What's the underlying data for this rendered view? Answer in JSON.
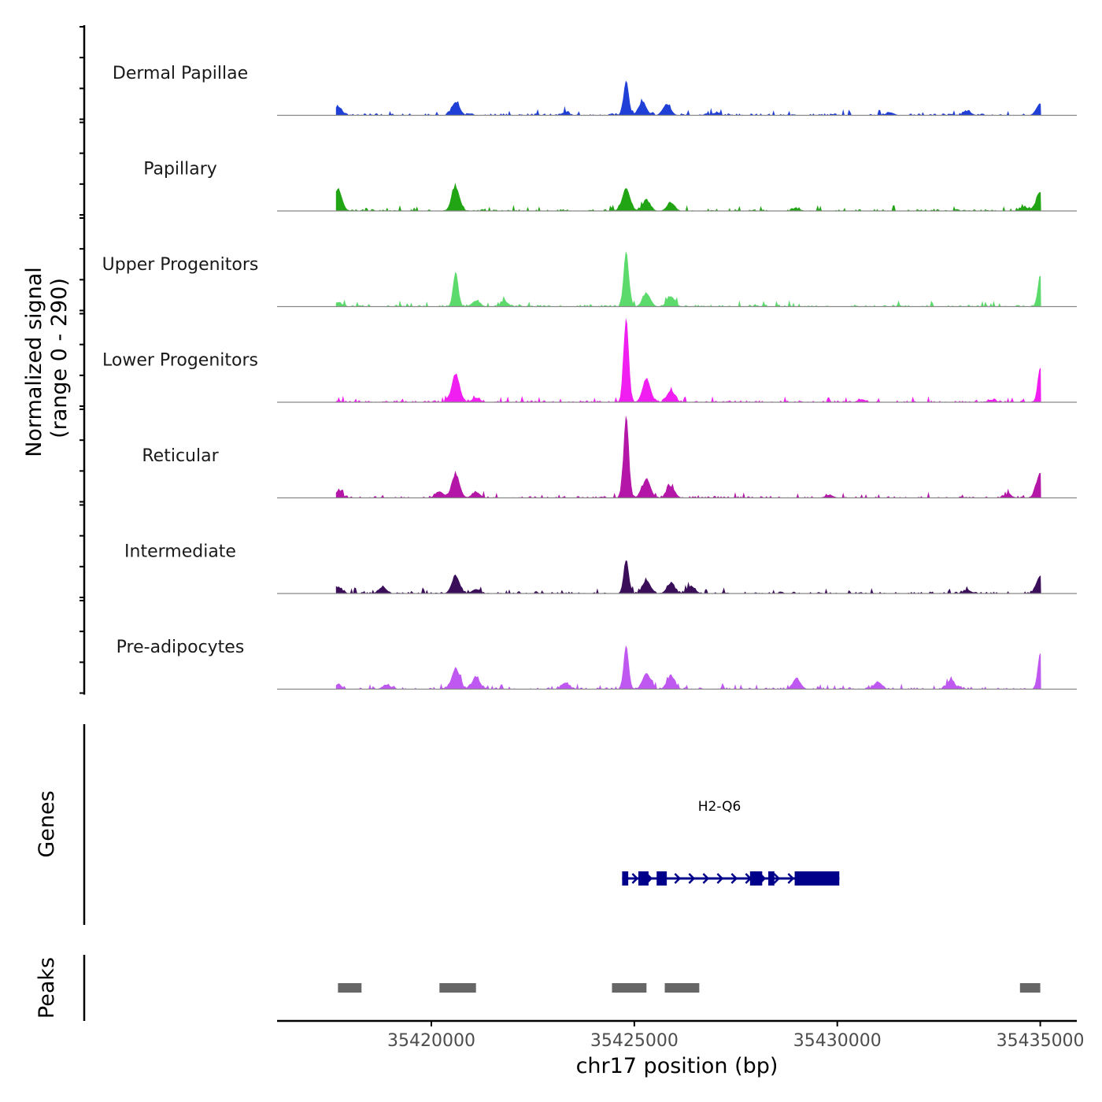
{
  "chart_data": {
    "type": "area",
    "title": "",
    "signal_axis_label_line1": "Normalized signal",
    "signal_axis_label_line2": "(range 0 - 290)",
    "y_range": [
      0,
      290
    ],
    "xlabel": "chr17 position (bp)",
    "x_range": [
      35416200,
      35435900
    ],
    "x_ticks": [
      35420000,
      35425000,
      35430000,
      35435000
    ],
    "x_tick_labels": [
      "35420000",
      "35425000",
      "35430000",
      "35435000"
    ],
    "tracks": [
      {
        "name": "Dermal Papillae",
        "color": "#1f3fd6",
        "peaks": [
          [
            35417700,
            30
          ],
          [
            35420600,
            45
          ],
          [
            35423300,
            10
          ],
          [
            35424800,
            120
          ],
          [
            35425200,
            45
          ],
          [
            35425800,
            38
          ],
          [
            35427000,
            8
          ],
          [
            35431300,
            10
          ],
          [
            35433200,
            14
          ],
          [
            35435000,
            40
          ]
        ]
      },
      {
        "name": "Papillary",
        "color": "#22a514",
        "peaks": [
          [
            35417700,
            75
          ],
          [
            35420600,
            80
          ],
          [
            35424800,
            75
          ],
          [
            35425300,
            35
          ],
          [
            35425900,
            28
          ],
          [
            35429000,
            8
          ],
          [
            35434600,
            14
          ],
          [
            35435000,
            65
          ]
        ]
      },
      {
        "name": "Upper Progenitors",
        "color": "#5cdb6c",
        "peaks": [
          [
            35417700,
            15
          ],
          [
            35420600,
            120
          ],
          [
            35421100,
            20
          ],
          [
            35421800,
            18
          ],
          [
            35424800,
            190
          ],
          [
            35425300,
            45
          ],
          [
            35425900,
            35
          ],
          [
            35435000,
            105
          ]
        ]
      },
      {
        "name": "Lower Progenitors",
        "color": "#f01ef0",
        "peaks": [
          [
            35417700,
            5
          ],
          [
            35420600,
            95
          ],
          [
            35421100,
            15
          ],
          [
            35424800,
            290
          ],
          [
            35425300,
            80
          ],
          [
            35425900,
            40
          ],
          [
            35430600,
            10
          ],
          [
            35433800,
            8
          ],
          [
            35435000,
            120
          ]
        ]
      },
      {
        "name": "Reticular",
        "color": "#b416a8",
        "peaks": [
          [
            35417700,
            20
          ],
          [
            35420200,
            22
          ],
          [
            35420600,
            80
          ],
          [
            35421100,
            20
          ],
          [
            35424800,
            285
          ],
          [
            35425300,
            65
          ],
          [
            35425900,
            38
          ],
          [
            35429800,
            10
          ],
          [
            35434200,
            12
          ],
          [
            35435000,
            85
          ]
        ]
      },
      {
        "name": "Intermediate",
        "color": "#3b0e5a",
        "peaks": [
          [
            35417700,
            22
          ],
          [
            35418800,
            22
          ],
          [
            35420600,
            60
          ],
          [
            35421100,
            15
          ],
          [
            35424800,
            115
          ],
          [
            35425300,
            45
          ],
          [
            35425900,
            35
          ],
          [
            35426400,
            25
          ],
          [
            35433200,
            12
          ],
          [
            35435000,
            60
          ]
        ]
      },
      {
        "name": "Pre-adipocytes",
        "color": "#bf58f0",
        "peaks": [
          [
            35417700,
            15
          ],
          [
            35418900,
            15
          ],
          [
            35420600,
            70
          ],
          [
            35421100,
            40
          ],
          [
            35423300,
            22
          ],
          [
            35424800,
            145
          ],
          [
            35425300,
            55
          ],
          [
            35425900,
            45
          ],
          [
            35429000,
            35
          ],
          [
            35431000,
            25
          ],
          [
            35432800,
            30
          ],
          [
            35435000,
            125
          ]
        ]
      }
    ],
    "genes_label": "Genes",
    "gene": {
      "name": "H2-Q6",
      "color": "#00008b",
      "start": 35424700,
      "end": 35430050,
      "exons": [
        [
          35424700,
          35424850
        ],
        [
          35425100,
          35425350
        ],
        [
          35425550,
          35425800
        ],
        [
          35427850,
          35428150
        ],
        [
          35428300,
          35428450
        ],
        [
          35428950,
          35430050
        ]
      ]
    },
    "peaks_label": "Peaks",
    "peak_regions": [
      [
        35417700,
        35418280
      ],
      [
        35420200,
        35421100
      ],
      [
        35424450,
        35425300
      ],
      [
        35425750,
        35426600
      ],
      [
        35434500,
        35435000
      ]
    ]
  }
}
